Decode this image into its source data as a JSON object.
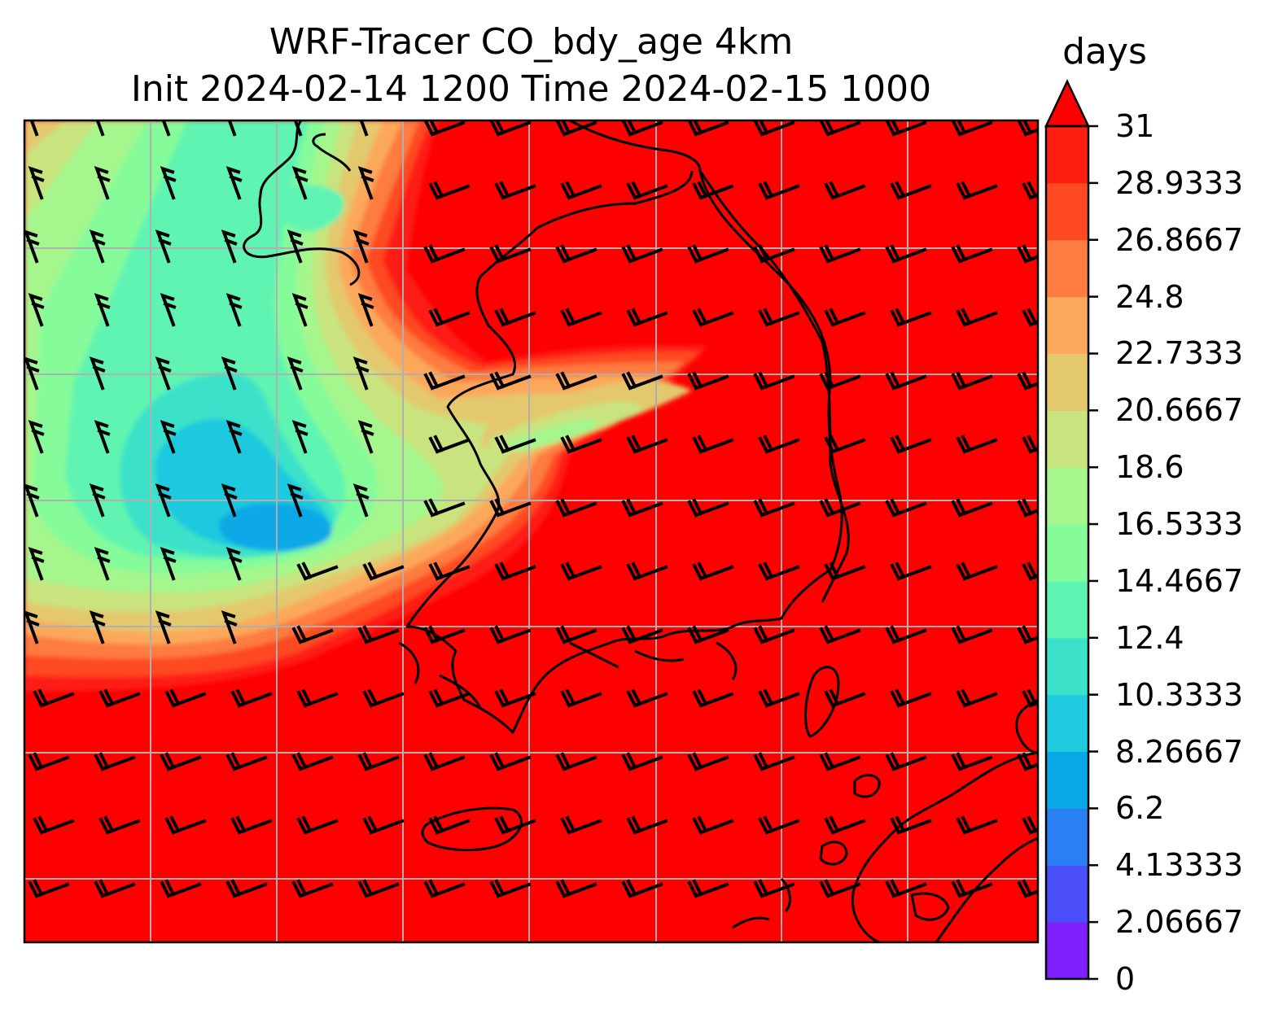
{
  "title": {
    "line1": "WRF-Tracer CO_bdy_age 4km",
    "line2": "Init 2024-02-14 1200 Time 2024-02-15 1000"
  },
  "colorbar": {
    "label": "days",
    "ticks": [
      "31",
      "28.9333",
      "26.8667",
      "24.8",
      "22.7333",
      "20.6667",
      "18.6",
      "16.5333",
      "14.4667",
      "12.4",
      "10.3333",
      "8.26667",
      "6.2",
      "4.13333",
      "2.06667",
      "0"
    ],
    "levels": [
      0,
      2.06667,
      4.13333,
      6.2,
      8.26667,
      10.3333,
      12.4,
      14.4667,
      16.5333,
      18.6,
      20.6667,
      22.7333,
      24.8,
      26.8667,
      28.9333,
      31
    ],
    "colors": [
      "#7f1ffb",
      "#4b4ff9",
      "#2a7ff2",
      "#0aa8e6",
      "#1fc9de",
      "#3be2c9",
      "#5ef4b1",
      "#86fb9a",
      "#a5f68c",
      "#c9e37e",
      "#e3c86e",
      "#fca85a",
      "#fe7c40",
      "#ff4a24",
      "#ff1e12"
    ],
    "extend_color": "#ff0000"
  },
  "map": {
    "field": "CO_bdy_age",
    "units": "days",
    "background_value": 31
  }
}
